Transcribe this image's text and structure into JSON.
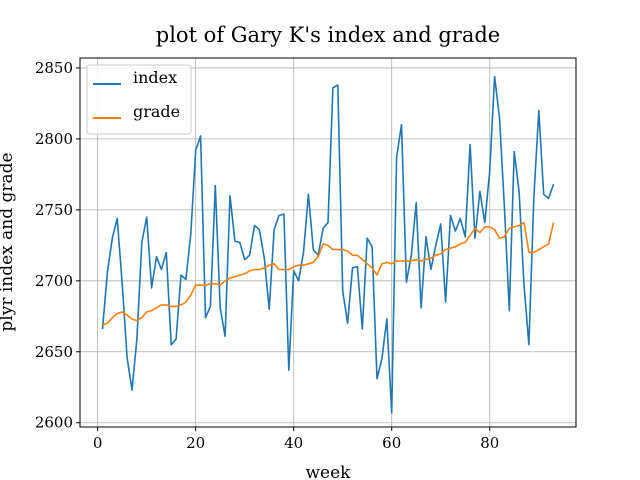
{
  "chart_data": {
    "type": "line",
    "title": "plot of Gary K's index and grade",
    "xlabel": "week",
    "ylabel": "plyr index and grade",
    "xlim": [
      -3.6,
      97.6
    ],
    "ylim": [
      2597,
      2857
    ],
    "xticks": [
      0,
      20,
      40,
      60,
      80
    ],
    "yticks": [
      2600,
      2650,
      2700,
      2750,
      2800,
      2850
    ],
    "grid": true,
    "legend": "top-left",
    "series": [
      {
        "name": "index",
        "color": "#1f77b4",
        "x": [
          1,
          2,
          3,
          4,
          5,
          6,
          7,
          8,
          9,
          10,
          11,
          12,
          13,
          14,
          15,
          16,
          17,
          18,
          19,
          20,
          21,
          22,
          23,
          24,
          25,
          26,
          27,
          28,
          29,
          30,
          31,
          32,
          33,
          34,
          35,
          36,
          37,
          38,
          39,
          40,
          41,
          42,
          43,
          44,
          45,
          46,
          47,
          48,
          49,
          50,
          51,
          52,
          53,
          54,
          55,
          56,
          57,
          58,
          59,
          60,
          61,
          62,
          63,
          64,
          65,
          66,
          67,
          68,
          69,
          70,
          71,
          72,
          73,
          74,
          75,
          76,
          77,
          78,
          79,
          80,
          81,
          82,
          83,
          84,
          85,
          86,
          87,
          88,
          89,
          90,
          91,
          92,
          93
        ],
        "values": [
          2666,
          2706,
          2730,
          2744,
          2698,
          2646,
          2623,
          2659,
          2727,
          2745,
          2695,
          2717,
          2708,
          2720,
          2655,
          2659,
          2704,
          2701,
          2733,
          2792,
          2802,
          2674,
          2682,
          2767,
          2681,
          2661,
          2760,
          2728,
          2727,
          2715,
          2718,
          2739,
          2736,
          2716,
          2680,
          2736,
          2746,
          2747,
          2637,
          2707,
          2700,
          2720,
          2761,
          2722,
          2718,
          2737,
          2741,
          2836,
          2838,
          2693,
          2670,
          2709,
          2710,
          2666,
          2730,
          2724,
          2631,
          2645,
          2673,
          2607,
          2787,
          2810,
          2699,
          2718,
          2755,
          2681,
          2731,
          2708,
          2725,
          2740,
          2685,
          2746,
          2735,
          2744,
          2731,
          2796,
          2730,
          2763,
          2741,
          2777,
          2844,
          2815,
          2752,
          2679,
          2791,
          2763,
          2697,
          2655,
          2758,
          2820,
          2761,
          2758,
          2768
        ]
      },
      {
        "name": "grade",
        "color": "#ff7f0e",
        "x": [
          1,
          2,
          3,
          4,
          5,
          6,
          7,
          8,
          9,
          10,
          11,
          12,
          13,
          14,
          15,
          16,
          17,
          18,
          19,
          20,
          21,
          22,
          23,
          24,
          25,
          26,
          27,
          28,
          29,
          30,
          31,
          32,
          33,
          34,
          35,
          36,
          37,
          38,
          39,
          40,
          41,
          42,
          43,
          44,
          45,
          46,
          47,
          48,
          49,
          50,
          51,
          52,
          53,
          54,
          55,
          56,
          57,
          58,
          59,
          60,
          61,
          62,
          63,
          64,
          65,
          66,
          67,
          68,
          69,
          70,
          71,
          72,
          73,
          74,
          75,
          76,
          77,
          78,
          79,
          80,
          81,
          82,
          83,
          84,
          85,
          86,
          87,
          88,
          89,
          90,
          91,
          92,
          93
        ],
        "values": [
          2669,
          2670,
          2674,
          2677,
          2678,
          2676,
          2673,
          2672,
          2674,
          2678,
          2679,
          2681,
          2683,
          2683,
          2682,
          2682,
          2683,
          2685,
          2690,
          2697,
          2697,
          2697,
          2698,
          2698,
          2697,
          2700,
          2702,
          2703,
          2704,
          2705,
          2707,
          2708,
          2708,
          2709,
          2711,
          2712,
          2708,
          2708,
          2708,
          2710,
          2711,
          2711,
          2712,
          2713,
          2717,
          2726,
          2725,
          2722,
          2722,
          2722,
          2721,
          2718,
          2718,
          2715,
          2712,
          2709,
          2704,
          2712,
          2713,
          2712,
          2714,
          2714,
          2714,
          2714,
          2715,
          2714,
          2715,
          2716,
          2718,
          2719,
          2722,
          2723,
          2724,
          2726,
          2727,
          2732,
          2737,
          2734,
          2738,
          2738,
          2736,
          2730,
          2731,
          2737,
          2738,
          2739,
          2741,
          2720,
          2720,
          2722,
          2724,
          2726,
          2741
        ]
      }
    ]
  }
}
